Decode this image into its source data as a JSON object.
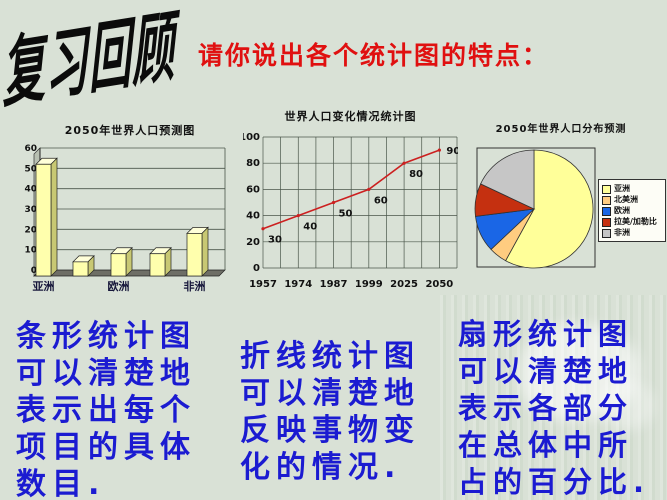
{
  "header": {
    "wordart_title": "复习回顾",
    "question": "请你说出各个统计图的特点："
  },
  "colors": {
    "background": "#d9e1d6",
    "question_red": "#e01010",
    "note_blue": "#1b1bd1",
    "bar_front": "#ffffad",
    "bar_side": "#c8c873",
    "bar_top": "#ffffd9",
    "line_red": "#cc2020",
    "grid": "#4a564a"
  },
  "chart_data": [
    {
      "type": "bar",
      "title": "2050年世界人口预测图",
      "categories": [
        "亚洲",
        "",
        "欧洲",
        "",
        "非洲"
      ],
      "values": [
        52,
        4,
        8,
        8,
        18
      ],
      "ylim": [
        0,
        60
      ],
      "ytick_interval": 10,
      "yticks": [
        0,
        10,
        20,
        30,
        40,
        50,
        60
      ],
      "grid": "horizontal",
      "style": "3d-column",
      "bar_color": "#ffffad"
    },
    {
      "type": "line",
      "title": "世界人口变化情况统计图",
      "x": [
        "1957",
        "1974",
        "1987",
        "1999",
        "2025",
        "2050"
      ],
      "values": [
        30,
        40,
        50,
        60,
        80,
        90
      ],
      "point_labels": [
        "30",
        "40",
        "50",
        "60",
        "80",
        "90"
      ],
      "ylim": [
        0,
        100
      ],
      "yticks": [
        0,
        20,
        40,
        60,
        80,
        100
      ],
      "grid": "both",
      "line_color": "#cc2020"
    },
    {
      "type": "pie",
      "title": "2050年世界人口分布预测",
      "legend_position": "right",
      "slices": [
        {
          "label": "亚洲",
          "value": 58,
          "color": "#ffff99"
        },
        {
          "label": "北美洲",
          "value": 5,
          "color": "#ffcc80"
        },
        {
          "label": "欧洲",
          "value": 10,
          "color": "#1a66e6"
        },
        {
          "label": "拉美/加勒比",
          "value": 9,
          "color": "#c53010"
        },
        {
          "label": "非洲",
          "value": 18,
          "color": "#c6c6c6"
        }
      ]
    }
  ],
  "notes": [
    {
      "id": "bar",
      "lines": [
        "条形统计图",
        "可以清楚地",
        "表示出每个",
        "项目的具体",
        "数目."
      ]
    },
    {
      "id": "line",
      "lines": [
        "折线统计图",
        "可以清楚地",
        "反映事物变",
        "化的情况."
      ]
    },
    {
      "id": "pie",
      "lines": [
        "扇形统计图",
        "可以清楚地",
        "表示各部分",
        "在总体中所",
        "占的百分比."
      ]
    }
  ]
}
